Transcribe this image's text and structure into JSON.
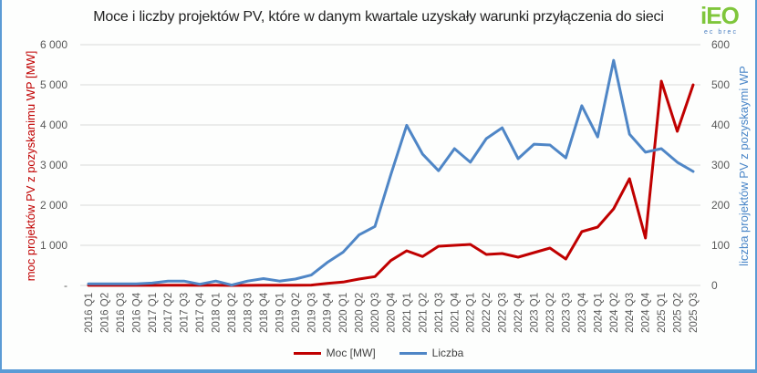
{
  "title": "Moce i liczby projektów PV, które w danym kwartale uzyskały warunki  przyłączenia do sieci",
  "logo": {
    "mark": "iEO",
    "sub": "ec brec"
  },
  "colors": {
    "moc": "#c00000",
    "liczba": "#4f86c6",
    "frame": "#5b9bd5",
    "grid": "#d9d9d9"
  },
  "legend": {
    "moc_label": "Moc [MW]",
    "liczba_label": "Liczba"
  },
  "chart_data": {
    "type": "line",
    "title": "Moce i liczby projektów PV, które w danym kwartale uzyskały warunki  przyłączenia do sieci",
    "xlabel": "",
    "ylabel": "moc projektów PV z pozyskanimu WP [MW]",
    "y2label": "liczba projektów PV z pozyskaymi WP",
    "ylim": [
      0,
      6000
    ],
    "y2lim": [
      0,
      600
    ],
    "yticks": [
      "-",
      "1 000",
      "2 000",
      "3 000",
      "4 000",
      "5 000",
      "6 000"
    ],
    "y2ticks": [
      "0",
      "100",
      "200",
      "300",
      "400",
      "500",
      "600"
    ],
    "grid": true,
    "legend_position": "bottom",
    "categories": [
      "2016 Q1",
      "2016 Q2",
      "2016 Q3",
      "2016 Q4",
      "2017 Q1",
      "2017 Q2",
      "2017 Q3",
      "2017 Q4",
      "2018 Q1",
      "2018 Q2",
      "2018 Q3",
      "2018 Q4",
      "2019 Q1",
      "2019 Q2",
      "2019 Q3",
      "2019 Q4",
      "2020 Q1",
      "2020 Q2",
      "2020 Q3",
      "2020 Q4",
      "2021 Q1",
      "2021 Q2",
      "2021 Q3",
      "2021 Q4",
      "2022 Q1",
      "2022 Q2",
      "2022 Q3",
      "2022 Q4",
      "2023 Q1",
      "2023 Q2",
      "2023 Q3",
      "2023 Q4",
      "2024 Q1",
      "2024 Q2",
      "2024 Q3",
      "2024 Q4",
      "2025 Q1",
      "2025 Q2",
      "2025 Q3"
    ],
    "series": [
      {
        "name": "Moc [MW]",
        "axis": "left",
        "values": [
          2,
          2,
          2,
          2,
          3,
          4,
          4,
          2,
          4,
          1,
          3,
          5,
          4,
          6,
          8,
          50,
          84,
          159,
          220,
          620,
          864,
          720,
          977,
          1000,
          1023,
          773,
          795,
          705,
          818,
          932,
          659,
          1340,
          1455,
          1910,
          2660,
          1182,
          5090,
          3840,
          5000
        ]
      },
      {
        "name": "Liczba",
        "axis": "right",
        "values": [
          4,
          4,
          4,
          4,
          6,
          11,
          11,
          3,
          11,
          1,
          11,
          17,
          11,
          16,
          26,
          57,
          83,
          126,
          147,
          276,
          399,
          327,
          286,
          341,
          307,
          366,
          393,
          316,
          352,
          350,
          318,
          448,
          370,
          561,
          377,
          332,
          341,
          307,
          284
        ]
      }
    ]
  }
}
